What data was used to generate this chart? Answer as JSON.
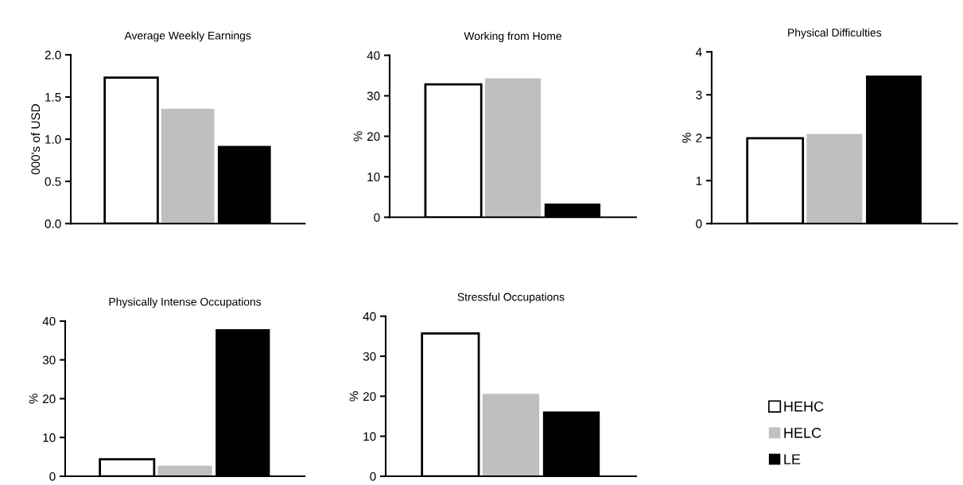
{
  "chart_data": [
    {
      "type": "bar",
      "title": "Average Weekly Earnings",
      "ylabel": "000's of USD",
      "categories": [
        null
      ],
      "ylim": [
        0,
        2.0
      ],
      "yticks": [
        {
          "value": 0,
          "label": "0.0"
        },
        {
          "value": 0.5,
          "label": "0.5"
        },
        {
          "value": 1.0,
          "label": "1.0"
        },
        {
          "value": 1.5,
          "label": "1.5"
        },
        {
          "value": 2.0,
          "label": "2.0"
        }
      ],
      "grid": false,
      "legend": "bottom right",
      "series": [
        {
          "name": "HEHC",
          "color": "#ffffff",
          "values": [
            1.73
          ]
        },
        {
          "name": "HELC",
          "color": "#bfbfbf",
          "values": [
            1.36
          ]
        },
        {
          "name": "LE",
          "color": "#000000",
          "values": [
            0.92
          ]
        }
      ]
    },
    {
      "type": "bar",
      "title": "Working from Home",
      "ylabel": "%",
      "categories": [
        null
      ],
      "ylim": [
        0,
        40
      ],
      "yticks": [
        0,
        10,
        20,
        30,
        40
      ],
      "grid": false,
      "series": [
        {
          "color": "#ffffff",
          "values": [
            32.8
          ]
        },
        {
          "color": "#bfbfbf",
          "values": [
            34.3
          ]
        },
        {
          "color": "#000000",
          "values": [
            3.4
          ]
        }
      ]
    },
    {
      "type": "bar",
      "title": "Physical Difficulties",
      "ylabel": "%",
      "categories": [
        null
      ],
      "ylim": [
        0,
        4
      ],
      "yticks": [
        0,
        1,
        2,
        3,
        4
      ],
      "grid": false,
      "series": [
        {
          "color": "#ffffff",
          "values": [
            1.99
          ]
        },
        {
          "color": "#bfbfbf",
          "values": [
            2.09
          ]
        },
        {
          "color": "#000000",
          "values": [
            3.45
          ]
        }
      ]
    },
    {
      "type": "bar",
      "title": "Physically Intense Occupations",
      "ylabel": "%",
      "categories": [
        null
      ],
      "ylim": [
        0,
        40
      ],
      "yticks": [
        0,
        10,
        20,
        30,
        40
      ],
      "grid": false,
      "series": [
        {
          "color": "#ffffff",
          "values": [
            4.4
          ]
        },
        {
          "color": "#bfbfbf",
          "values": [
            2.7
          ]
        },
        {
          "color": "#000000",
          "values": [
            37.9
          ]
        }
      ]
    },
    {
      "type": "bar",
      "title": "Stressful Occupations",
      "ylabel": "%",
      "categories": [
        null
      ],
      "ylim": [
        0,
        40
      ],
      "yticks": [
        0,
        10,
        20,
        30,
        40
      ],
      "grid": false,
      "series": [
        {
          "color": "#ffffff",
          "values": [
            35.7
          ]
        },
        {
          "color": "#bfbfbf",
          "values": [
            20.6
          ]
        },
        {
          "color": "#000000",
          "values": [
            16.2
          ]
        }
      ]
    }
  ]
}
